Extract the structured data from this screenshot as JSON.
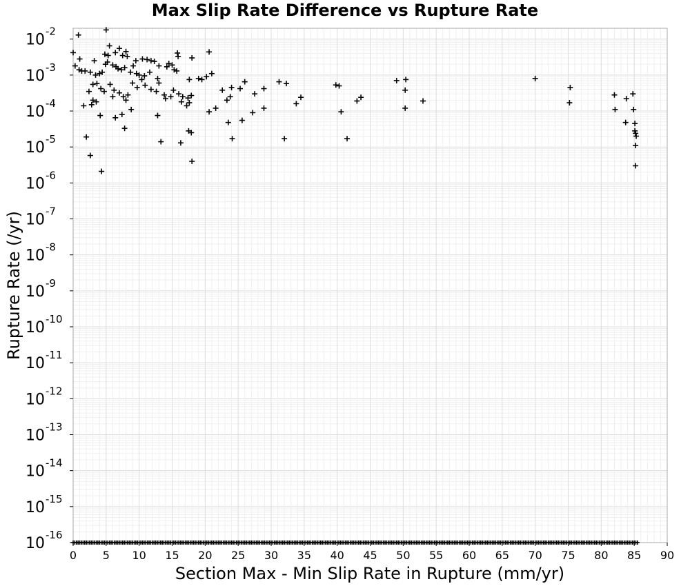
{
  "chart_data": {
    "type": "scatter",
    "title": "Max Slip Rate Difference vs Rupture Rate",
    "xlabel": "Section Max - Min Slip Rate in Rupture (mm/yr)",
    "ylabel": "Rupture Rate (/yr)",
    "xlim": [
      0,
      90
    ],
    "ylim": [
      1e-16,
      0.02
    ],
    "yscale": "log",
    "grid": true,
    "marker": "plus",
    "marker_color": "#000000",
    "x_ticks": [
      "0",
      "5",
      "10",
      "15",
      "20",
      "25",
      "30",
      "35",
      "40",
      "45",
      "50",
      "55",
      "60",
      "65",
      "70",
      "75",
      "80",
      "85",
      "90"
    ],
    "y_ticks": [
      {
        "base": "10",
        "exp": "-2"
      },
      {
        "base": "10",
        "exp": "-3"
      },
      {
        "base": "10",
        "exp": "-4"
      },
      {
        "base": "10",
        "exp": "-5"
      },
      {
        "base": "10",
        "exp": "-6"
      },
      {
        "base": "10",
        "exp": "-7"
      },
      {
        "base": "10",
        "exp": "-8"
      },
      {
        "base": "10",
        "exp": "-9"
      },
      {
        "base": "10",
        "exp": "-10"
      },
      {
        "base": "10",
        "exp": "-11"
      },
      {
        "base": "10",
        "exp": "-12"
      },
      {
        "base": "10",
        "exp": "-13"
      },
      {
        "base": "10",
        "exp": "-14"
      },
      {
        "base": "10",
        "exp": "-15"
      },
      {
        "base": "10",
        "exp": "-16"
      }
    ],
    "points": [
      [
        5.0,
        0.018
      ],
      [
        0.8,
        0.013
      ],
      [
        0.0,
        0.0042
      ],
      [
        1.0,
        0.0028
      ],
      [
        3.2,
        0.0025
      ],
      [
        4.8,
        0.0038
      ],
      [
        5.3,
        0.0035
      ],
      [
        5.5,
        0.0065
      ],
      [
        6.4,
        0.0042
      ],
      [
        7.0,
        0.0055
      ],
      [
        7.5,
        0.0035
      ],
      [
        8.0,
        0.0045
      ],
      [
        8.2,
        0.0033
      ],
      [
        9.5,
        0.0025
      ],
      [
        10.5,
        0.0028
      ],
      [
        11.2,
        0.0027
      ],
      [
        11.8,
        0.0025
      ],
      [
        12.3,
        0.0024
      ],
      [
        13.0,
        0.0018
      ],
      [
        14.5,
        0.0021
      ],
      [
        15.0,
        0.0019
      ],
      [
        15.8,
        0.0041
      ],
      [
        15.9,
        0.0033
      ],
      [
        18.0,
        0.003
      ],
      [
        20.6,
        0.0044
      ],
      [
        0.3,
        0.0018
      ],
      [
        0.9,
        0.0014
      ],
      [
        1.3,
        0.0013
      ],
      [
        1.8,
        0.0013
      ],
      [
        2.6,
        0.0012
      ],
      [
        3.4,
        0.001
      ],
      [
        4.0,
        0.0011
      ],
      [
        4.4,
        0.0012
      ],
      [
        4.9,
        0.002
      ],
      [
        5.2,
        0.0023
      ],
      [
        6.0,
        0.0019
      ],
      [
        6.5,
        0.0017
      ],
      [
        6.8,
        0.0015
      ],
      [
        7.3,
        0.0014
      ],
      [
        7.8,
        0.0016
      ],
      [
        8.7,
        0.0012
      ],
      [
        9.1,
        0.0018
      ],
      [
        9.6,
        0.0011
      ],
      [
        10.0,
        0.001
      ],
      [
        10.4,
        0.00075
      ],
      [
        10.8,
        0.00095
      ],
      [
        11.6,
        0.0012
      ],
      [
        12.8,
        0.0008
      ],
      [
        14.2,
        0.0017
      ],
      [
        15.3,
        0.0014
      ],
      [
        15.7,
        0.0013
      ],
      [
        17.6,
        0.00075
      ],
      [
        19.0,
        0.0008
      ],
      [
        19.5,
        0.00075
      ],
      [
        20.2,
        0.0009
      ],
      [
        21.0,
        0.0011
      ],
      [
        2.4,
        0.00035
      ],
      [
        3.0,
        0.00055
      ],
      [
        3.6,
        0.00058
      ],
      [
        4.2,
        0.00042
      ],
      [
        4.7,
        0.00035
      ],
      [
        5.6,
        0.00055
      ],
      [
        6.2,
        0.00038
      ],
      [
        7.0,
        0.00032
      ],
      [
        7.6,
        0.00025
      ],
      [
        8.3,
        0.00028
      ],
      [
        9.0,
        0.0006
      ],
      [
        9.7,
        0.00045
      ],
      [
        10.9,
        0.00052
      ],
      [
        11.8,
        0.0004
      ],
      [
        13.0,
        0.0006
      ],
      [
        13.8,
        0.00028
      ],
      [
        14.8,
        0.00025
      ],
      [
        15.2,
        0.00038
      ],
      [
        16.0,
        0.0003
      ],
      [
        16.6,
        0.00025
      ],
      [
        17.4,
        0.00023
      ],
      [
        17.9,
        0.00027
      ],
      [
        22.6,
        0.00038
      ],
      [
        24.0,
        0.00045
      ],
      [
        25.3,
        0.00042
      ],
      [
        26.0,
        0.00065
      ],
      [
        27.5,
        0.0003
      ],
      [
        28.9,
        0.00042
      ],
      [
        31.2,
        0.00065
      ],
      [
        32.3,
        0.00058
      ],
      [
        39.8,
        0.00053
      ],
      [
        40.3,
        0.0005
      ],
      [
        49.0,
        0.0007
      ],
      [
        50.4,
        0.00075
      ],
      [
        3.0,
        0.0002
      ],
      [
        3.5,
        0.00018
      ],
      [
        6.0,
        0.00025
      ],
      [
        8.0,
        0.0002
      ],
      [
        12.6,
        0.00035
      ],
      [
        14.0,
        0.00022
      ],
      [
        16.4,
        0.00018
      ],
      [
        17.2,
        0.00014
      ],
      [
        17.6,
        0.00017
      ],
      [
        23.3,
        0.0002
      ],
      [
        23.8,
        0.00025
      ],
      [
        33.8,
        0.00016
      ],
      [
        34.5,
        0.00024
      ],
      [
        43.0,
        0.00019
      ],
      [
        43.6,
        0.00024
      ],
      [
        50.3,
        0.00038
      ],
      [
        53.0,
        0.00019
      ],
      [
        70.0,
        0.0008
      ],
      [
        75.3,
        0.00045
      ],
      [
        82.0,
        0.00028
      ],
      [
        83.8,
        0.00022
      ],
      [
        84.8,
        0.0003
      ],
      [
        1.6,
        0.00014
      ],
      [
        2.8,
        0.00015
      ],
      [
        4.1,
        7.5e-05
      ],
      [
        6.4,
        6.5e-05
      ],
      [
        7.4,
        8e-05
      ],
      [
        8.8,
        0.00011
      ],
      [
        12.8,
        7.5e-05
      ],
      [
        20.6,
        9.5e-05
      ],
      [
        21.6,
        0.00012
      ],
      [
        23.5,
        4.8e-05
      ],
      [
        25.6,
        5.5e-05
      ],
      [
        27.2,
        9e-05
      ],
      [
        28.9,
        0.00012
      ],
      [
        40.6,
        9.5e-05
      ],
      [
        50.3,
        0.00012
      ],
      [
        75.2,
        0.00017
      ],
      [
        82.1,
        0.00011
      ],
      [
        83.7,
        4.8e-05
      ],
      [
        84.9,
        0.00011
      ],
      [
        85.1,
        4.5e-05
      ],
      [
        7.8,
        3.3e-05
      ],
      [
        17.5,
        2.8e-05
      ],
      [
        17.9,
        2.5e-05
      ],
      [
        85.1,
        2.8e-05
      ],
      [
        85.2,
        2.4e-05
      ],
      [
        85.3,
        2e-05
      ],
      [
        2.0,
        1.9e-05
      ],
      [
        24.1,
        1.7e-05
      ],
      [
        32.0,
        1.7e-05
      ],
      [
        41.5,
        1.7e-05
      ],
      [
        13.3,
        1.4e-05
      ],
      [
        16.3,
        1.3e-05
      ],
      [
        85.2,
        1.1e-05
      ],
      [
        2.6,
        5.8e-06
      ],
      [
        18.0,
        4e-06
      ],
      [
        85.2,
        3e-06
      ],
      [
        4.3,
        2.1e-06
      ]
    ],
    "floor_value": 1e-16,
    "floor_x_range": [
      0,
      85.5
    ]
  }
}
